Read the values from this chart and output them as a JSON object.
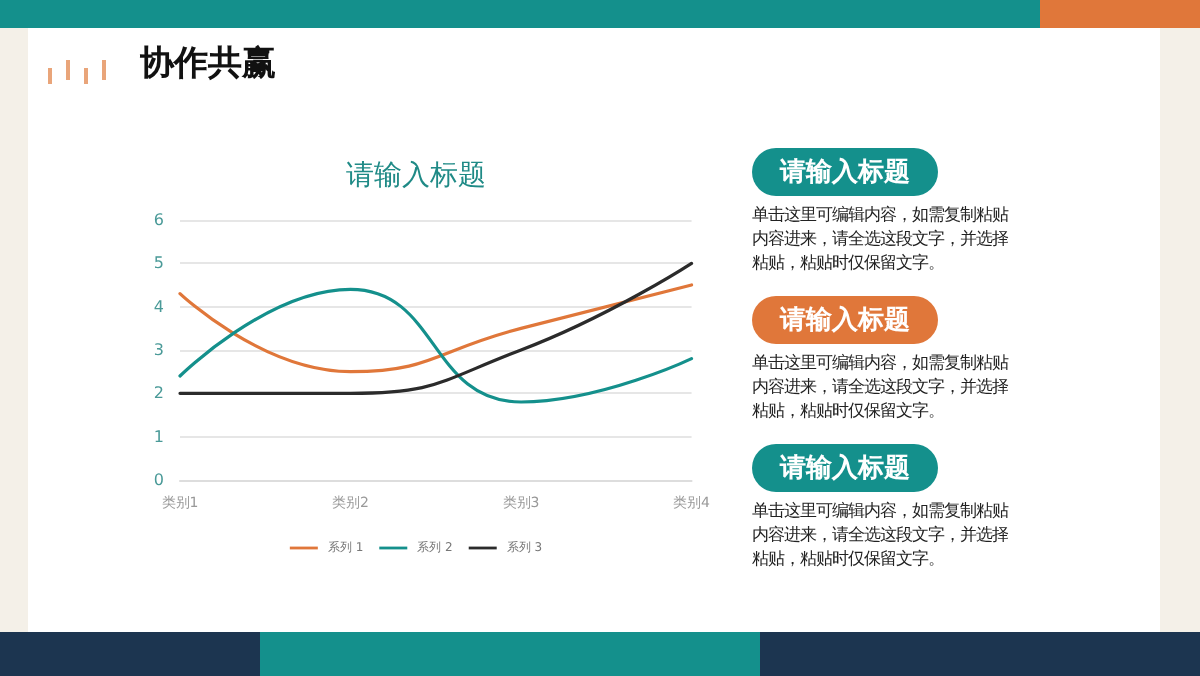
{
  "chart_data": [
    {
      "type": "line",
      "title": "请输入标题",
      "categories": [
        "类别1",
        "类别2",
        "类别3",
        "类别4"
      ],
      "series": [
        {
          "name": "系列 1",
          "color": "#e0773a",
          "values": [
            4.3,
            2.5,
            3.5,
            4.5
          ]
        },
        {
          "name": "系列 2",
          "color": "#14908c",
          "values": [
            2.4,
            4.4,
            1.8,
            2.8
          ]
        },
        {
          "name": "系列 3",
          "color": "#2b2b2b",
          "values": [
            2,
            2,
            3,
            5
          ]
        }
      ],
      "ylim": [
        0,
        6
      ],
      "yticks": [
        0,
        1,
        2,
        3,
        4,
        5,
        6
      ],
      "grid": "y",
      "legend": "bottom",
      "marker": "none",
      "line_style": "solid"
    },
    {
      "type": "other",
      "title": "协作共赢",
      "colors": [
        "#14908c",
        "#e0773a",
        "#14908c"
      ],
      "annotations": [
        "请输入标题",
        "单击这里可编辑内容，如需复制粘贴内容进来，请全选这段文字，并选择粘贴，粘贴时仅保留文字。",
        "请输入标题",
        "单击这里可编辑内容，如需复制粘贴内容进来，请全选这段文字，并选择粘贴，粘贴时仅保留文字。",
        "请输入标题",
        "单击这里可编辑内容，如需复制粘贴内容进来，请全选这段文字，并选择粘贴，粘贴时仅保留文字。"
      ]
    }
  ]
}
